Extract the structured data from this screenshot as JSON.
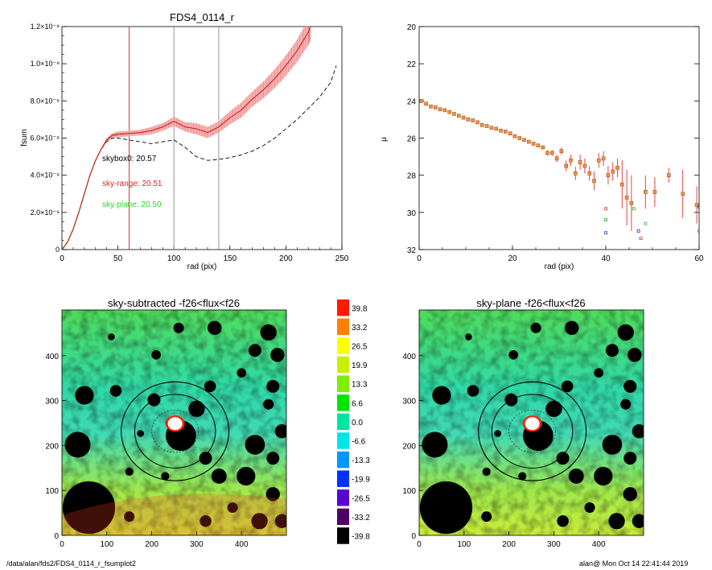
{
  "charts": {
    "fsum": {
      "title": "FDS4_0114_r",
      "xlabel": "rad (pix)",
      "ylabel": "fsum",
      "xticks": [
        "0",
        "50",
        "100",
        "150",
        "200",
        "250"
      ],
      "yticks": [
        "0",
        "2.0×10⁻⁹",
        "4.0×10⁻⁹",
        "6.0×10⁻⁹",
        "8.0×10⁻⁹",
        "1.0×10⁻⁸",
        "1.2×10⁻⁸"
      ],
      "annotations": {
        "skybox0": "skybox0: 20.57",
        "sky_range": "sky-range: 20.51",
        "sky_plane": "sky-plane: 20.50"
      }
    },
    "mu": {
      "xlabel": "rad (pix)",
      "ylabel": "μ",
      "xticks": [
        "0",
        "20",
        "40",
        "60"
      ],
      "yticks": [
        "20",
        "22",
        "24",
        "26",
        "28",
        "30",
        "32"
      ]
    },
    "img1": {
      "title": "sky-subtracted -f26<flux<f26",
      "xticks": [
        "0",
        "100",
        "200",
        "300",
        "400"
      ],
      "yticks": [
        "0",
        "100",
        "200",
        "300",
        "400"
      ]
    },
    "img2": {
      "title": "sky-plane -f26<flux<f26",
      "xticks": [
        "0",
        "100",
        "200",
        "300",
        "400"
      ],
      "yticks": [
        "0",
        "100",
        "200",
        "300",
        "400"
      ]
    },
    "colorbar": {
      "labels": [
        "39.8",
        "33.2",
        "26.5",
        "19.9",
        "13.3",
        "6.6",
        "0.0",
        "-6.6",
        "-13.3",
        "-19.9",
        "-26.5",
        "-33.2",
        "-39.8"
      ],
      "colors": [
        "#ff1a00",
        "#ff7f00",
        "#ffff00",
        "#c8f000",
        "#7dee00",
        "#00e600",
        "#00e6a0",
        "#00e6e6",
        "#0096ff",
        "#0032ff",
        "#5a00d2",
        "#500064",
        "#000000"
      ]
    }
  },
  "chart_data": [
    {
      "type": "line",
      "title": "FDS4_0114_r",
      "xlabel": "rad (pix)",
      "ylabel": "fsum",
      "xlim": [
        0,
        250
      ],
      "ylim": [
        0,
        1.2e-08
      ],
      "vlines": {
        "red": [
          60
        ],
        "gray": [
          100,
          140
        ]
      },
      "series": [
        {
          "color": "#d42020",
          "style": "solid with pink error bars",
          "x": [
            0,
            5,
            10,
            15,
            20,
            25,
            30,
            35,
            40,
            45,
            50,
            60,
            70,
            80,
            90,
            100,
            110,
            120,
            130,
            140,
            150,
            160,
            170,
            180,
            190,
            200,
            210,
            220,
            222
          ],
          "y": [
            0,
            4e-10,
            1.1e-09,
            2e-09,
            3e-09,
            4e-09,
            4.8e-09,
            5.4e-09,
            5.9e-09,
            6.15e-09,
            6.2e-09,
            6.25e-09,
            6.3e-09,
            6.4e-09,
            6.6e-09,
            6.9e-09,
            6.6e-09,
            6.5e-09,
            6.3e-09,
            6.6e-09,
            7.1e-09,
            7.5e-09,
            8.1e-09,
            8.6e-09,
            9.2e-09,
            9.9e-09,
            1.07e-08,
            1.17e-08,
            1.2e-08
          ],
          "err": [
            0,
            0,
            0,
            0,
            0,
            0,
            0,
            5e-11,
            1e-10,
            1e-10,
            1.5e-10,
            1.5e-10,
            1.5e-10,
            2e-10,
            2e-10,
            2.5e-10,
            2.5e-10,
            3e-10,
            3e-10,
            3e-10,
            3.5e-10,
            4e-10,
            4e-10,
            4.5e-10,
            5e-10,
            5.5e-10,
            6e-10,
            7e-10,
            7e-10
          ]
        },
        {
          "color": "#000000",
          "style": "dashed",
          "x": [
            0,
            5,
            10,
            15,
            20,
            25,
            30,
            35,
            40,
            45,
            50,
            60,
            70,
            80,
            90,
            100,
            110,
            120,
            130,
            140,
            150,
            160,
            170,
            180,
            190,
            200,
            210,
            220,
            230,
            240,
            245
          ],
          "y": [
            0,
            4e-10,
            1.1e-09,
            2e-09,
            3e-09,
            4e-09,
            4.8e-09,
            5.4e-09,
            5.8e-09,
            6e-09,
            6e-09,
            5.9e-09,
            5.8e-09,
            5.7e-09,
            5.8e-09,
            5.9e-09,
            5.5e-09,
            5e-09,
            4.8e-09,
            4.85e-09,
            4.95e-09,
            5.1e-09,
            5.3e-09,
            5.6e-09,
            6e-09,
            6.5e-09,
            7e-09,
            7.6e-09,
            8.2e-09,
            9e-09,
            9.9e-09
          ]
        }
      ]
    },
    {
      "type": "scatter",
      "xlabel": "rad (pix)",
      "ylabel": "μ",
      "xlim": [
        0,
        60
      ],
      "ylim": [
        32,
        20
      ],
      "series": [
        {
          "color": "#d42020",
          "style": "points with error bars",
          "points": [
            [
              0.5,
              24.0,
              0.05
            ],
            [
              1.5,
              24.15,
              0.05
            ],
            [
              2.5,
              24.3,
              0.05
            ],
            [
              3.5,
              24.35,
              0.05
            ],
            [
              4.5,
              24.45,
              0.05
            ],
            [
              5.5,
              24.5,
              0.05
            ],
            [
              6.5,
              24.6,
              0.05
            ],
            [
              7.5,
              24.7,
              0.05
            ],
            [
              8.5,
              24.8,
              0.05
            ],
            [
              9.5,
              24.9,
              0.05
            ],
            [
              10.5,
              25.0,
              0.05
            ],
            [
              11.5,
              25.05,
              0.05
            ],
            [
              12.5,
              25.15,
              0.05
            ],
            [
              13.5,
              25.3,
              0.05
            ],
            [
              14.5,
              25.35,
              0.05
            ],
            [
              15.5,
              25.45,
              0.05
            ],
            [
              16.5,
              25.5,
              0.05
            ],
            [
              17.5,
              25.6,
              0.05
            ],
            [
              18.5,
              25.65,
              0.05
            ],
            [
              19.5,
              25.75,
              0.05
            ],
            [
              20.5,
              25.9,
              0.05
            ],
            [
              21.5,
              26.0,
              0.08
            ],
            [
              22.5,
              26.1,
              0.08
            ],
            [
              23.5,
              26.2,
              0.1
            ],
            [
              24.5,
              26.3,
              0.1
            ],
            [
              25.5,
              26.4,
              0.1
            ],
            [
              26.5,
              26.5,
              0.1
            ],
            [
              27.5,
              26.8,
              0.15
            ],
            [
              28.5,
              26.8,
              0.15
            ],
            [
              29.5,
              27.1,
              0.2
            ],
            [
              30.5,
              26.7,
              0.2
            ],
            [
              31.5,
              27.5,
              0.3
            ],
            [
              32.5,
              27.2,
              0.3
            ],
            [
              33.5,
              27.9,
              0.35
            ],
            [
              34.5,
              27.3,
              0.4
            ],
            [
              35.5,
              27.5,
              0.4
            ],
            [
              36.5,
              27.9,
              0.4
            ],
            [
              37.5,
              28.3,
              0.5
            ],
            [
              38.5,
              27.2,
              0.4
            ],
            [
              39.5,
              27.1,
              0.4
            ],
            [
              40.5,
              28.0,
              0.5
            ],
            [
              41.5,
              27.8,
              0.5
            ],
            [
              42.5,
              27.6,
              0.5
            ],
            [
              43.5,
              28.5,
              1.3
            ],
            [
              44.5,
              29.2,
              1.5
            ],
            [
              45.5,
              29.5,
              1.5
            ],
            [
              48.5,
              28.9,
              0.9
            ],
            [
              50.5,
              28.9,
              0.8
            ],
            [
              53.5,
              28.0,
              0.4
            ],
            [
              56.5,
              29.0,
              1.3
            ],
            [
              59.5,
              29.6,
              1.0
            ]
          ]
        }
      ]
    }
  ],
  "footer": {
    "left": "/data/alan/fds2/FDS4_0114_r_fsumplot2",
    "right": "alan@  Mon Oct 14 22:41:44 2019"
  }
}
